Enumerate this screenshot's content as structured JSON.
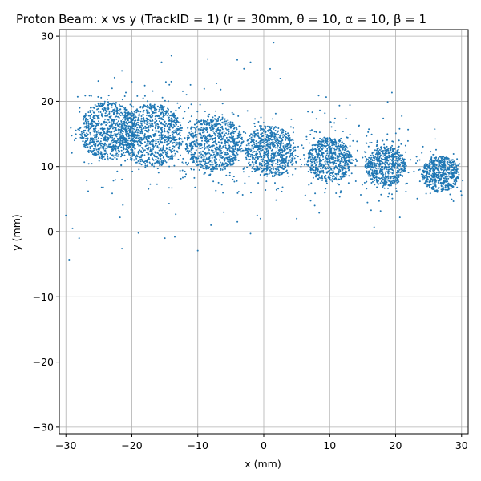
{
  "chart_data": {
    "type": "scatter",
    "title": "Proton Beam: x vs y (TrackID = 1) (r = 30mm, θ = 10, α = 10, β = 1",
    "xlabel": "x (mm)",
    "ylabel": "y (mm)",
    "xlim": [
      -31,
      31
    ],
    "ylim": [
      -31,
      31
    ],
    "xticks": [
      -30,
      -20,
      -10,
      0,
      10,
      20,
      30
    ],
    "yticks": [
      -30,
      -20,
      -10,
      0,
      10,
      20,
      30
    ],
    "xtick_labels": [
      "−30",
      "−20",
      "−10",
      "0",
      "10",
      "20",
      "30"
    ],
    "ytick_labels": [
      "−30",
      "−20",
      "−10",
      "0",
      "10",
      "20",
      "30"
    ],
    "grid": true,
    "point_color": "#1f77b4",
    "clusters": [
      {
        "cx": -23.5,
        "cy": 15.5,
        "r": 4.5
      },
      {
        "cx": -17.0,
        "cy": 14.8,
        "r": 4.8
      },
      {
        "cx": -7.5,
        "cy": 13.5,
        "r": 4.3
      },
      {
        "cx": 1.0,
        "cy": 12.3,
        "r": 3.9
      },
      {
        "cx": 10.0,
        "cy": 11.0,
        "r": 3.4
      },
      {
        "cx": 18.5,
        "cy": 10.0,
        "r": 3.1
      },
      {
        "cx": 26.8,
        "cy": 8.8,
        "r": 2.8
      }
    ],
    "outliers": [
      [
        -30.0,
        2.5
      ],
      [
        -29.5,
        -4.3
      ],
      [
        -29.0,
        0.5
      ],
      [
        -28.0,
        -1.0
      ],
      [
        -21.5,
        -2.6
      ],
      [
        -21.8,
        2.2
      ],
      [
        -19.0,
        -0.2
      ],
      [
        -15.0,
        -1.0
      ],
      [
        -13.5,
        -0.8
      ],
      [
        -10.0,
        -2.9
      ],
      [
        -8.0,
        1.0
      ],
      [
        -4.0,
        1.5
      ],
      [
        -1.0,
        2.5
      ],
      [
        -0.5,
        2.0
      ],
      [
        -2.0,
        -0.3
      ],
      [
        2.5,
        23.5
      ],
      [
        5.0,
        2.0
      ],
      [
        1.5,
        29.0
      ],
      [
        -14.0,
        27.0
      ],
      [
        -8.5,
        26.5
      ],
      [
        -15.5,
        26.0
      ],
      [
        -3.0,
        25.0
      ],
      [
        -2.0,
        26.0
      ],
      [
        -23.0,
        22.0
      ],
      [
        -20.0,
        23.0
      ]
    ]
  }
}
